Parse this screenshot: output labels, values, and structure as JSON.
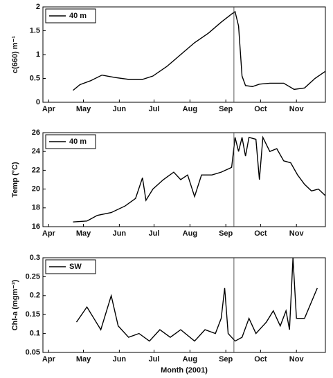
{
  "chart_data": [
    {
      "type": "line",
      "ylabel": "c(660) m⁻¹",
      "legend": "upper left",
      "x": [
        126,
        132,
        141,
        151,
        162,
        174,
        186,
        195,
        207,
        219,
        231,
        243,
        254,
        263,
        266,
        269,
        272,
        275,
        281,
        287,
        296,
        308,
        317,
        326,
        335,
        344
      ],
      "series": [
        {
          "name": "40 m",
          "color": "#000000",
          "values": [
            0.25,
            0.37,
            0.45,
            0.57,
            0.52,
            0.48,
            0.48,
            0.55,
            0.75,
            1.0,
            1.25,
            1.45,
            1.68,
            1.85,
            1.9,
            1.6,
            0.55,
            0.35,
            0.33,
            0.38,
            0.4,
            0.4,
            0.27,
            0.3,
            0.5,
            0.65
          ]
        }
      ],
      "xlim": [
        100,
        344
      ],
      "xticks": [
        {
          "value": 105,
          "label": "Apr"
        },
        {
          "value": 135,
          "label": "May"
        },
        {
          "value": 166,
          "label": "Jun"
        },
        {
          "value": 196,
          "label": "Jul"
        },
        {
          "value": 227,
          "label": "Aug"
        },
        {
          "value": 258,
          "label": "Sep"
        },
        {
          "value": 288,
          "label": "Oct"
        },
        {
          "value": 319,
          "label": "Nov"
        }
      ],
      "ylim": [
        0,
        2
      ],
      "yticks": [
        0,
        0.5,
        1,
        1.5,
        2
      ],
      "vertical_line_x": 265
    },
    {
      "type": "line",
      "ylabel": "Temp (°C)",
      "legend": "upper left",
      "x": [
        126,
        138,
        147,
        159,
        171,
        180,
        186,
        189,
        195,
        204,
        213,
        219,
        225,
        231,
        237,
        246,
        254,
        263,
        266,
        269,
        272,
        275,
        278,
        284,
        287,
        290,
        296,
        302,
        308,
        314,
        320,
        326,
        332,
        338,
        344
      ],
      "series": [
        {
          "name": "40 m",
          "color": "#000000",
          "values": [
            16.5,
            16.6,
            17.2,
            17.5,
            18.2,
            19.0,
            21.2,
            18.8,
            20.0,
            21.0,
            21.8,
            21.0,
            21.5,
            19.2,
            21.5,
            21.5,
            21.8,
            22.3,
            25.5,
            24.0,
            25.5,
            23.5,
            25.5,
            25.3,
            21.0,
            25.5,
            24.0,
            24.3,
            23.0,
            22.8,
            21.5,
            20.5,
            19.8,
            20.0,
            19.3
          ]
        }
      ],
      "xlim": [
        100,
        344
      ],
      "xticks": [
        {
          "value": 105,
          "label": "Apr"
        },
        {
          "value": 135,
          "label": "May"
        },
        {
          "value": 166,
          "label": "Jun"
        },
        {
          "value": 196,
          "label": "Jul"
        },
        {
          "value": 227,
          "label": "Aug"
        },
        {
          "value": 258,
          "label": "Sep"
        },
        {
          "value": 288,
          "label": "Oct"
        },
        {
          "value": 319,
          "label": "Nov"
        }
      ],
      "ylim": [
        16,
        26
      ],
      "yticks": [
        16,
        18,
        20,
        22,
        24,
        26
      ],
      "vertical_line_x": 265
    },
    {
      "type": "line",
      "ylabel": "Chl-a (mgm⁻³)",
      "xlabel": "Month (2001)",
      "legend": "upper left",
      "x": [
        129,
        138,
        144,
        150,
        159,
        165,
        174,
        183,
        192,
        201,
        210,
        219,
        231,
        240,
        249,
        254,
        257,
        260,
        266,
        272,
        278,
        284,
        293,
        299,
        305,
        310,
        313,
        316,
        319,
        326,
        337
      ],
      "series": [
        {
          "name": "SW",
          "color": "#000000",
          "values": [
            0.13,
            0.17,
            0.14,
            0.11,
            0.2,
            0.12,
            0.09,
            0.1,
            0.08,
            0.11,
            0.09,
            0.11,
            0.08,
            0.11,
            0.1,
            0.14,
            0.22,
            0.1,
            0.08,
            0.09,
            0.14,
            0.1,
            0.13,
            0.16,
            0.12,
            0.16,
            0.11,
            0.3,
            0.14,
            0.14,
            0.22
          ]
        }
      ],
      "xlim": [
        100,
        344
      ],
      "xticks": [
        {
          "value": 105,
          "label": "Apr"
        },
        {
          "value": 135,
          "label": "May"
        },
        {
          "value": 166,
          "label": "Jun"
        },
        {
          "value": 196,
          "label": "Jul"
        },
        {
          "value": 227,
          "label": "Aug"
        },
        {
          "value": 258,
          "label": "Sep"
        },
        {
          "value": 288,
          "label": "Oct"
        },
        {
          "value": 319,
          "label": "Nov"
        }
      ],
      "ylim": [
        0.05,
        0.3
      ],
      "yticks": [
        0.05,
        0.1,
        0.15,
        0.2,
        0.25,
        0.3
      ],
      "vertical_line_x": 265
    }
  ]
}
